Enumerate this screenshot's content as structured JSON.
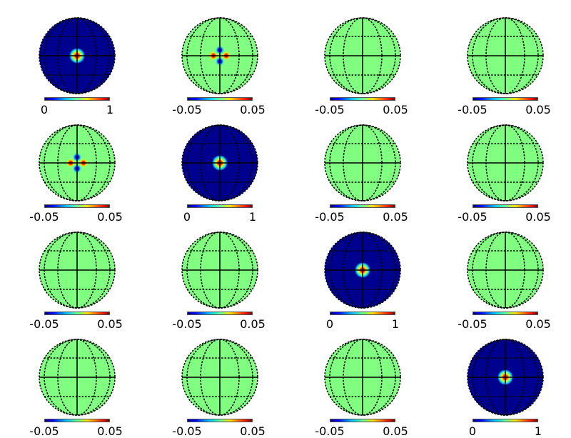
{
  "colors": {
    "background_zero": "#80ff80",
    "background_low": "#00008f",
    "positive": "#ff0000",
    "negative": "#0000ff",
    "graticule": "#000000"
  },
  "panels": [
    {
      "row": 1,
      "col": 1,
      "scale_min": "0",
      "scale_max": "1",
      "field": "diagonal",
      "pattern": "center-spot"
    },
    {
      "row": 1,
      "col": 2,
      "scale_min": "-0.05",
      "scale_max": "0.05",
      "field": "offdiag",
      "pattern": "h-red-v-blue"
    },
    {
      "row": 1,
      "col": 3,
      "scale_min": "-0.05",
      "scale_max": "0.05",
      "field": "offdiag",
      "pattern": "flat"
    },
    {
      "row": 1,
      "col": 4,
      "scale_min": "-0.05",
      "scale_max": "0.05",
      "field": "offdiag",
      "pattern": "flat"
    },
    {
      "row": 2,
      "col": 1,
      "scale_min": "-0.05",
      "scale_max": "0.05",
      "field": "offdiag",
      "pattern": "h-red-v-blue"
    },
    {
      "row": 2,
      "col": 2,
      "scale_min": "0",
      "scale_max": "1",
      "field": "diagonal",
      "pattern": "center-spot"
    },
    {
      "row": 2,
      "col": 3,
      "scale_min": "-0.05",
      "scale_max": "0.05",
      "field": "offdiag",
      "pattern": "flat"
    },
    {
      "row": 2,
      "col": 4,
      "scale_min": "-0.05",
      "scale_max": "0.05",
      "field": "offdiag",
      "pattern": "flat"
    },
    {
      "row": 3,
      "col": 1,
      "scale_min": "-0.05",
      "scale_max": "0.05",
      "field": "offdiag",
      "pattern": "flat"
    },
    {
      "row": 3,
      "col": 2,
      "scale_min": "-0.05",
      "scale_max": "0.05",
      "field": "offdiag",
      "pattern": "flat"
    },
    {
      "row": 3,
      "col": 3,
      "scale_min": "0",
      "scale_max": "1",
      "field": "diagonal",
      "pattern": "center-spot"
    },
    {
      "row": 3,
      "col": 4,
      "scale_min": "-0.05",
      "scale_max": "0.05",
      "field": "offdiag",
      "pattern": "flat"
    },
    {
      "row": 4,
      "col": 1,
      "scale_min": "-0.05",
      "scale_max": "0.05",
      "field": "offdiag",
      "pattern": "flat"
    },
    {
      "row": 4,
      "col": 2,
      "scale_min": "-0.05",
      "scale_max": "0.05",
      "field": "offdiag",
      "pattern": "flat"
    },
    {
      "row": 4,
      "col": 3,
      "scale_min": "-0.05",
      "scale_max": "0.05",
      "field": "offdiag",
      "pattern": "flat"
    },
    {
      "row": 4,
      "col": 4,
      "scale_min": "0",
      "scale_max": "1",
      "field": "diagonal",
      "pattern": "center-spot"
    }
  ]
}
